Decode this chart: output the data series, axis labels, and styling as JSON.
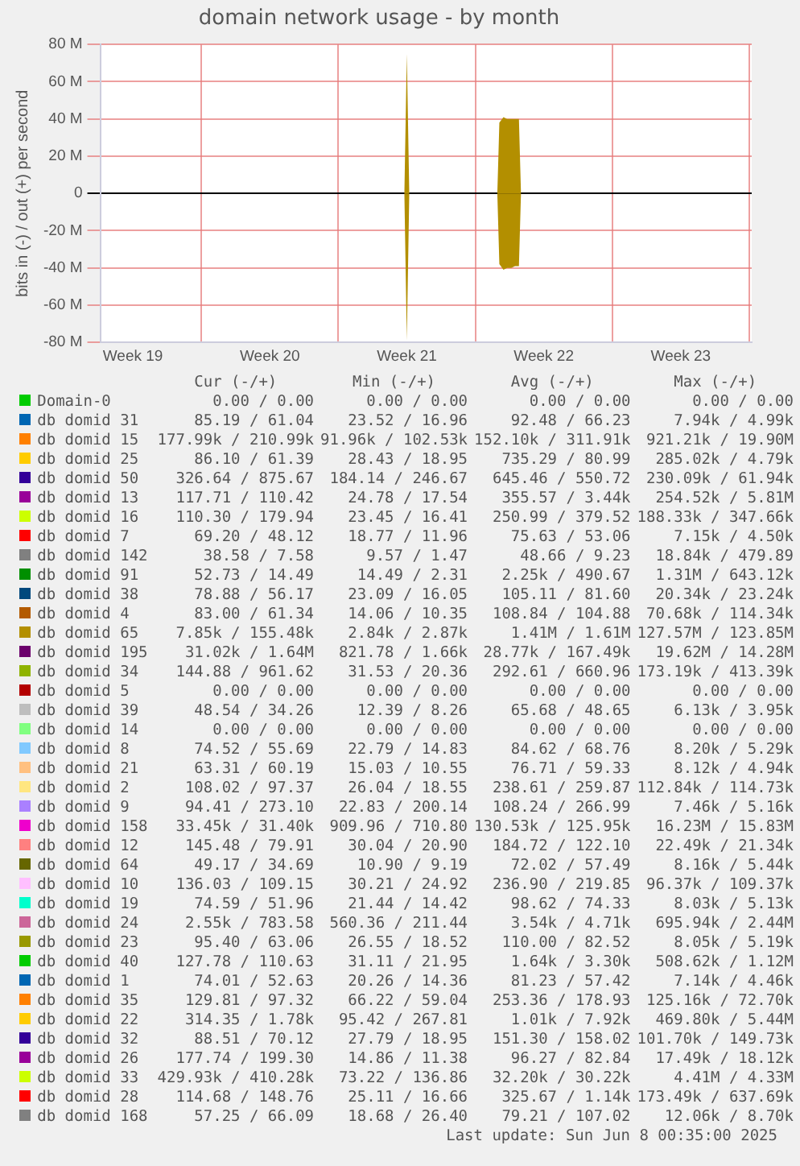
{
  "chart_data": {
    "type": "area",
    "title": "domain network usage - by month",
    "ylabel": "bits in (-) / out (+) per second",
    "xlim": [
      "2025-05-06T20:00",
      "2025-06-09T03:00"
    ],
    "xticks": [
      {
        "value": "2025-05-08T12:00",
        "label": "Week 19"
      },
      {
        "value": "2025-05-12",
        "label": null
      },
      {
        "value": "2025-05-15T12:00",
        "label": "Week 20"
      },
      {
        "value": "2025-05-19",
        "label": null
      },
      {
        "value": "2025-05-22T12:00",
        "label": "Week 21"
      },
      {
        "value": "2025-05-26",
        "label": null
      },
      {
        "value": "2025-05-29T12:00",
        "label": "Week 22"
      },
      {
        "value": "2025-06-02",
        "label": null
      },
      {
        "value": "2025-06-05T12:00",
        "label": "Week 23"
      },
      {
        "value": "2025-06-09",
        "label": null
      }
    ],
    "ylim": [
      -80,
      80
    ],
    "yticks": [
      {
        "value": -80,
        "label": "-80 M"
      },
      {
        "value": -60,
        "label": "-60 M"
      },
      {
        "value": -40,
        "label": "-40 M"
      },
      {
        "value": -20,
        "label": "-20 M"
      },
      0,
      {
        "value": 20,
        "label": "20 M"
      },
      {
        "value": 40,
        "label": "40 M"
      },
      {
        "value": 60,
        "label": "60 M"
      },
      {
        "value": 80,
        "label": "80 M"
      }
    ],
    "grid": true,
    "legend": "bottom",
    "marker": "none",
    "series": [
      {
        "name": "Domain-0",
        "color": "#00cc00",
        "values": [
          null,
          null
        ]
      },
      {
        "name": "db domid 31",
        "color": "#0066b3",
        "values": [
          null,
          null
        ]
      },
      {
        "name": "db domid 15",
        "color": "#ff8000",
        "values": [
          null,
          null
        ]
      },
      {
        "name": "db domid 25",
        "color": "#ffcc00",
        "values": [
          null,
          null
        ]
      },
      {
        "name": "db domid 50",
        "color": "#330099",
        "values": [
          null,
          null
        ]
      },
      {
        "name": "db domid 13",
        "color": "#990099",
        "values": [
          null,
          null
        ]
      },
      {
        "name": "db domid 16",
        "color": "#ccff00",
        "values": [
          null,
          null
        ]
      },
      {
        "name": "db domid 7",
        "color": "#ff0000",
        "values": [
          null,
          null
        ]
      },
      {
        "name": "db domid 142",
        "color": "#808080",
        "values": [
          null,
          null
        ]
      },
      {
        "name": "db domid 91",
        "color": "#008f00",
        "values": [
          null,
          null
        ]
      },
      {
        "name": "db domid 38",
        "color": "#00487d",
        "values": [
          null,
          null
        ]
      },
      {
        "name": "db domid 4",
        "color": "#b35a00",
        "values": [
          null,
          null
        ]
      },
      {
        "name": "db domid 65",
        "color": "#b38f00",
        "x": [
          "2025-05-06T20:00",
          "2025-05-22T09:00",
          "2025-05-22T12:00",
          "2025-05-22T15:00",
          "2025-05-27T03:00",
          "2025-05-27T05:30",
          "2025-05-27T10:30",
          "2025-05-27T15:00",
          "2025-05-27T20:00",
          "2025-05-28T00:45",
          "2025-05-28T05:30",
          "2025-05-28T08:00",
          "2025-06-09T03:00"
        ],
        "values": [
          0,
          0,
          75,
          0,
          0,
          38,
          41,
          40,
          40,
          40,
          40,
          0,
          0
        ]
      },
      {
        "color": "#b38f00",
        "x": [
          "2025-05-06T20:00",
          "2025-05-22T09:00",
          "2025-05-22T12:00",
          "2025-05-22T15:00",
          "2025-05-27T03:00",
          "2025-05-27T05:30",
          "2025-05-27T10:30",
          "2025-05-27T15:00",
          "2025-05-27T20:00",
          "2025-05-28T00:45",
          "2025-05-28T05:30",
          "2025-05-28T08:00",
          "2025-06-09T03:00"
        ],
        "values": [
          0,
          0,
          -79,
          0,
          0,
          -38,
          -41,
          -40,
          -40,
          -39,
          -39,
          0,
          0
        ]
      },
      {
        "name": "db domid 195",
        "color": "#6b006b",
        "values": [
          null,
          null
        ]
      },
      {
        "name": "db domid 34",
        "color": "#8fb300",
        "values": [
          null,
          null
        ]
      },
      {
        "name": "db domid 5",
        "color": "#b30000",
        "values": [
          null,
          null
        ]
      },
      {
        "name": "db domid 39",
        "color": "#bebebe",
        "values": [
          null,
          null
        ]
      },
      {
        "name": "db domid 14",
        "color": "#80ff80",
        "values": [
          null,
          null
        ]
      },
      {
        "name": "db domid 8",
        "color": "#80c9ff",
        "values": [
          null,
          null
        ]
      },
      {
        "name": "db domid 21",
        "color": "#ffc080",
        "values": [
          null,
          null
        ]
      },
      {
        "name": "db domid 2",
        "color": "#ffe680",
        "values": [
          null,
          null
        ]
      },
      {
        "name": "db domid 9",
        "color": "#aa80ff",
        "values": [
          null,
          null
        ]
      },
      {
        "name": "db domid 158",
        "color": "#ee00cc",
        "values": [
          null,
          null
        ]
      },
      {
        "name": "db domid 12",
        "color": "#ff8080",
        "values": [
          null,
          null
        ]
      },
      {
        "name": "db domid 64",
        "color": "#666600",
        "values": [
          null,
          null
        ]
      },
      {
        "name": "db domid 10",
        "color": "#ffbfff",
        "values": [
          null,
          null
        ]
      },
      {
        "name": "db domid 19",
        "color": "#00ffcc",
        "values": [
          null,
          null
        ]
      },
      {
        "name": "db domid 24",
        "color": "#cc6699",
        "values": [
          null,
          null
        ]
      },
      {
        "name": "db domid 23",
        "color": "#999900",
        "values": [
          null,
          null
        ]
      },
      {
        "name": "db domid 40",
        "color": "#00cc00",
        "values": [
          null,
          null
        ]
      },
      {
        "name": "db domid 1",
        "color": "#0066b3",
        "values": [
          null,
          null
        ]
      },
      {
        "name": "db domid 35",
        "color": "#ff8000",
        "values": [
          null,
          null
        ]
      },
      {
        "name": "db domid 22",
        "color": "#ffcc00",
        "values": [
          null,
          null
        ]
      },
      {
        "name": "db domid 32",
        "color": "#330099",
        "values": [
          null,
          null
        ]
      },
      {
        "name": "db domid 26",
        "color": "#990099",
        "values": [
          null,
          null
        ]
      },
      {
        "name": "db domid 33",
        "color": "#ccff00",
        "values": [
          null,
          null
        ]
      },
      {
        "name": "db domid 28",
        "color": "#ff0000",
        "values": [
          null,
          null
        ]
      },
      {
        "name": "db domid 168",
        "color": "#808080",
        "values": [
          null,
          null
        ]
      }
    ],
    "annotations": [
      "Cur (-/+)",
      "Min (-/+)",
      "Avg (-/+)",
      "Max (-/+)",
      "0.00 / 0.00",
      "0.00 / 0.00",
      "0.00 / 0.00",
      "0.00 / 0.00",
      "85.19 / 61.04",
      "23.52 / 16.96",
      "92.48 / 66.23",
      "7.94k / 4.99k",
      "177.99k / 210.99k",
      "91.96k / 102.53k",
      "152.10k / 311.91k",
      "921.21k / 19.90M",
      "86.10 / 61.39",
      "28.43 / 18.95",
      "735.29 / 80.99",
      "285.02k / 4.79k",
      "326.64 / 875.67",
      "184.14 / 246.67",
      "645.46 / 550.72",
      "230.09k / 61.94k",
      "117.71 / 110.42",
      "24.78 / 17.54",
      "355.57 / 3.44k",
      "254.52k / 5.81M",
      "110.30 / 179.94",
      "23.45 / 16.41",
      "250.99 / 379.52",
      "188.33k / 347.66k",
      "69.20 / 48.12",
      "18.77 / 11.96",
      "75.63 / 53.06",
      "7.15k / 4.50k",
      "38.58 / 7.58",
      "9.57 / 1.47",
      "48.66 / 9.23",
      "18.84k / 479.89",
      "52.73 / 14.49",
      "14.49 / 2.31",
      "2.25k / 490.67",
      "1.31M / 643.12k",
      "78.88 / 56.17",
      "23.09 / 16.05",
      "105.11 / 81.60",
      "20.34k / 23.24k",
      "83.00 / 61.34",
      "14.06 / 10.35",
      "108.84 / 104.88",
      "70.68k / 114.34k",
      "7.85k / 155.48k",
      "2.84k / 2.87k",
      "1.41M / 1.61M",
      "127.57M / 123.85M",
      "31.02k / 1.64M",
      "821.78 / 1.66k",
      "28.77k / 167.49k",
      "19.62M / 14.28M",
      "144.88 / 961.62",
      "31.53 / 20.36",
      "292.61 / 660.96",
      "173.19k / 413.39k",
      "0.00 / 0.00",
      "0.00 / 0.00",
      "0.00 / 0.00",
      "0.00 / 0.00",
      "48.54 / 34.26",
      "12.39 / 8.26",
      "65.68 / 48.65",
      "6.13k / 3.95k",
      "0.00 / 0.00",
      "0.00 / 0.00",
      "0.00 / 0.00",
      "0.00 / 0.00",
      "74.52 / 55.69",
      "22.79 / 14.83",
      "84.62 / 68.76",
      "8.20k / 5.29k",
      "63.31 / 60.19",
      "15.03 / 10.55",
      "76.71 / 59.33",
      "8.12k / 4.94k",
      "108.02 / 97.37",
      "26.04 / 18.55",
      "238.61 / 259.87",
      "112.84k / 114.73k",
      "94.41 / 273.10",
      "22.83 / 200.14",
      "108.24 / 266.99",
      "7.46k / 5.16k",
      "33.45k / 31.40k",
      "909.96 / 710.80",
      "130.53k / 125.95k",
      "16.23M / 15.83M",
      "145.48 / 79.91",
      "30.04 / 20.90",
      "184.72 / 122.10",
      "22.49k / 21.34k",
      "49.17 / 34.69",
      "10.90 / 9.19",
      "72.02 / 57.49",
      "8.16k / 5.44k",
      "136.03 / 109.15",
      "30.21 / 24.92",
      "236.90 / 219.85",
      "96.37k / 109.37k",
      "74.59 / 51.96",
      "21.44 / 14.42",
      "98.62 / 74.33",
      "8.03k / 5.13k",
      "2.55k / 783.58",
      "560.36 / 211.44",
      "3.54k / 4.71k",
      "695.94k / 2.44M",
      "95.40 / 63.06",
      "26.55 / 18.52",
      "110.00 / 82.52",
      "8.05k / 5.19k",
      "127.78 / 110.63",
      "31.11 / 21.95",
      "1.64k / 3.30k",
      "508.62k / 1.12M",
      "74.01 / 52.63",
      "20.26 / 14.36",
      "81.23 / 57.42",
      "7.14k / 4.46k",
      "129.81 / 97.32",
      "66.22 / 59.04",
      "253.36 / 178.93",
      "125.16k / 72.70k",
      "314.35 / 1.78k",
      "95.42 / 267.81",
      "1.01k / 7.92k",
      "469.80k / 5.44M",
      "88.51 / 70.12",
      "27.79 / 18.95",
      "151.30 / 158.02",
      "101.70k / 149.73k",
      "177.74 / 199.30",
      "14.86 / 11.38",
      "96.27 / 82.84",
      "17.49k / 18.12k",
      "429.93k / 410.28k",
      "73.22 / 136.86",
      "32.20k / 30.22k",
      "4.41M / 4.33M",
      "114.68 / 148.76",
      "25.11 / 16.66",
      "325.67 / 1.14k",
      "173.49k / 637.69k",
      "57.25 / 66.09",
      "18.68 / 26.40",
      "79.21 / 107.02",
      "12.06k / 8.70k",
      "Last update:  Sun Jun  8 00:35:00 2025"
    ]
  }
}
